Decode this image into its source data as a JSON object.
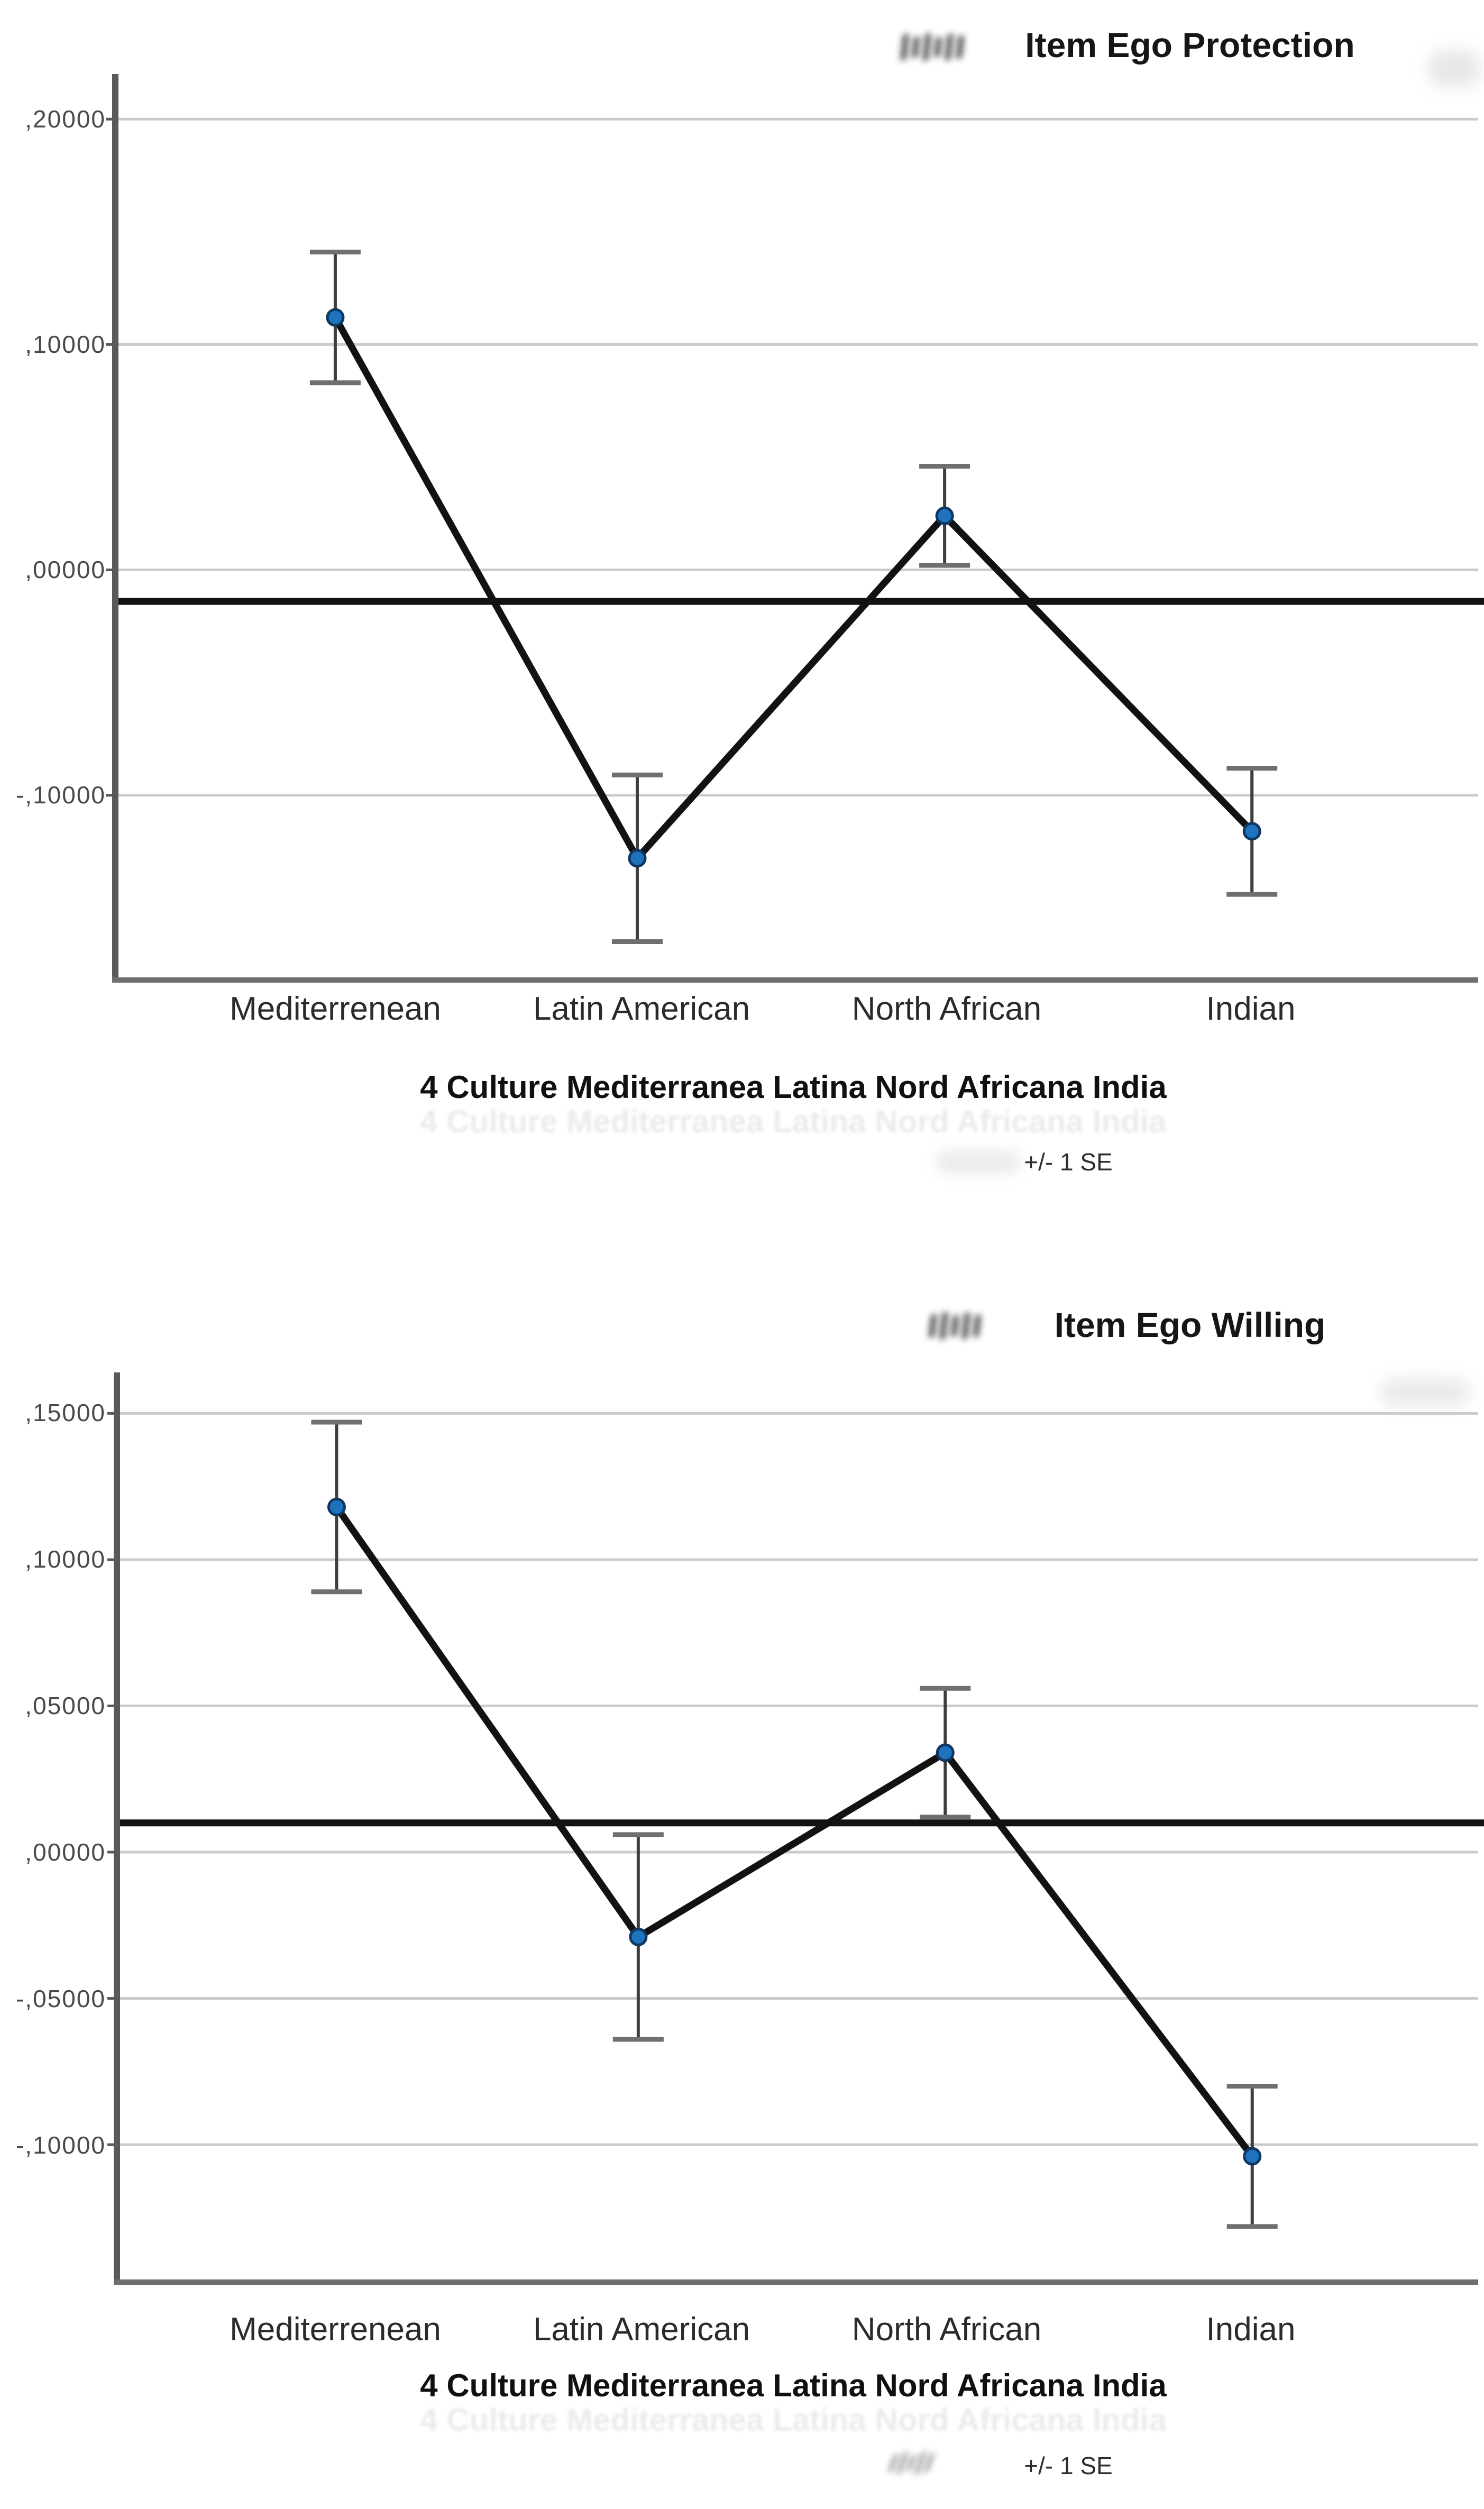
{
  "colors": {
    "gridline": "#cbcbcb",
    "axis": "#59595b",
    "axis_bottom": "#6e6e6e",
    "line": "#121212",
    "errbar_stem": "#3e3e3e",
    "errbar_cap": "#6f6f6f",
    "marker": "#1f73bd",
    "marker_edge": "#10375f"
  },
  "chart_data": [
    {
      "type": "line",
      "title": "Item Ego Protection",
      "categories": [
        "Mediterrenean",
        "Latin American",
        "North African",
        "Indian"
      ],
      "series": [
        {
          "name": "Mean Item Ego Protection",
          "values": [
            0.112,
            -0.128,
            0.024,
            -0.116
          ]
        }
      ],
      "error_se": [
        0.029,
        0.037,
        0.022,
        0.028
      ],
      "reference_line": -0.014,
      "ytick_values": [
        0.2,
        0.1,
        0.0,
        -0.1
      ],
      "ytick_labels": [
        ",20000",
        ",10000",
        ",00000",
        "-,10000"
      ],
      "ylim": [
        -0.182,
        0.22
      ],
      "xlabel": "4 Culture Mediterranea Latina Nord Africana India",
      "footer": "+/- 1 SE",
      "grid": true,
      "legend": "none",
      "error_bars": "+/- 1 SE"
    },
    {
      "type": "line",
      "title": "Item Ego Willing",
      "categories": [
        "Mediterrenean",
        "Latin American",
        "North African",
        "Indian"
      ],
      "series": [
        {
          "name": "Mean Item Ego Willing",
          "values": [
            0.118,
            -0.029,
            0.034,
            -0.104
          ]
        }
      ],
      "error_se": [
        0.029,
        0.035,
        0.022,
        0.024
      ],
      "reference_line": 0.01,
      "ytick_values": [
        0.15,
        0.1,
        0.05,
        0.0,
        -0.05,
        -0.1
      ],
      "ytick_labels": [
        ",15000",
        ",10000",
        ",05000",
        ",00000",
        "-,05000",
        "-,10000"
      ],
      "ylim": [
        -0.147,
        0.164
      ],
      "xlabel": "4 Culture Mediterranea Latina Nord Africana India",
      "footer": "+/- 1 SE",
      "grid": true,
      "legend": "none",
      "error_bars": "+/- 1 SE"
    }
  ]
}
